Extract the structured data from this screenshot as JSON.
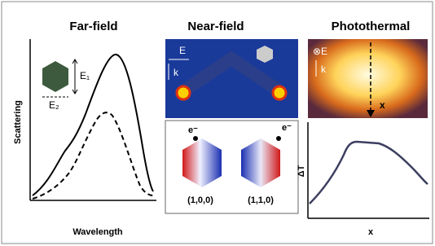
{
  "panels": [
    {
      "title": "Far-field",
      "y_label": "Scattering",
      "x_label": "Wavelength",
      "polarizations": [
        "E₁",
        "E₂"
      ]
    },
    {
      "title": "Near-field",
      "field_labels": [
        "E",
        "k"
      ],
      "charge_labels": [
        "e⁻",
        "e⁻"
      ],
      "modes": [
        "(1,0,0)",
        "(1,1,0)"
      ]
    },
    {
      "title": "Photothermal",
      "field_labels": [
        "⊗E",
        "k"
      ],
      "scan_label": "x",
      "y_label": "ΔT",
      "x_label": "x"
    }
  ]
}
